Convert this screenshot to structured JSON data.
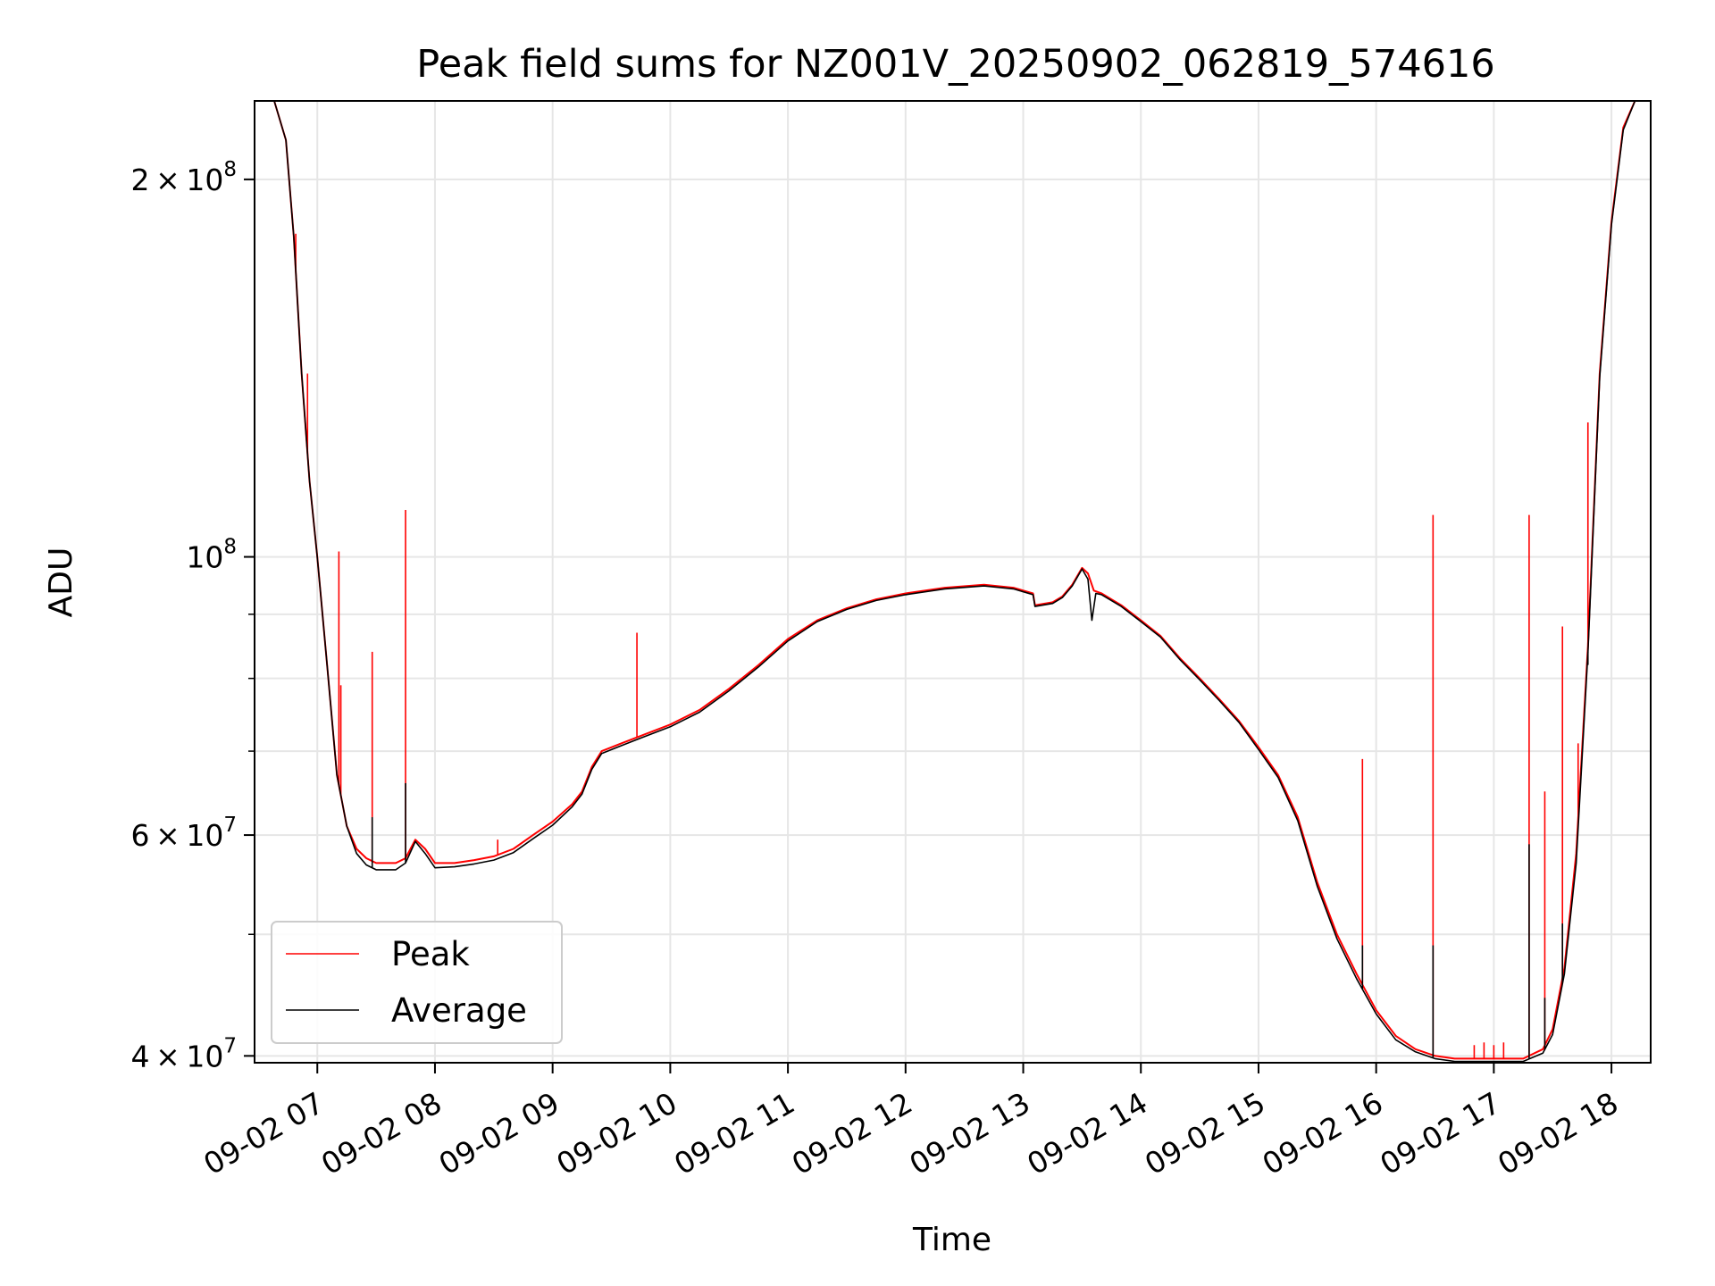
{
  "chart_data": {
    "type": "line",
    "title": "Peak field sums for NZ001V_20250902_062819_574616",
    "xlabel": "Time",
    "ylabel": "ADU",
    "x_scale": "time",
    "y_scale": "log",
    "xlim": [
      "2025-09-02 06:28",
      "2025-09-02 18:20"
    ],
    "ylim": [
      39500000,
      231000000
    ],
    "grid": true,
    "legend_position": "lower-left",
    "x_ticks": [
      {
        "value": "2025-09-02 07:00",
        "label": "09-02 07"
      },
      {
        "value": "2025-09-02 08:00",
        "label": "09-02 08"
      },
      {
        "value": "2025-09-02 09:00",
        "label": "09-02 09"
      },
      {
        "value": "2025-09-02 10:00",
        "label": "09-02 10"
      },
      {
        "value": "2025-09-02 11:00",
        "label": "09-02 11"
      },
      {
        "value": "2025-09-02 12:00",
        "label": "09-02 12"
      },
      {
        "value": "2025-09-02 13:00",
        "label": "09-02 13"
      },
      {
        "value": "2025-09-02 14:00",
        "label": "09-02 14"
      },
      {
        "value": "2025-09-02 15:00",
        "label": "09-02 15"
      },
      {
        "value": "2025-09-02 16:00",
        "label": "09-02 16"
      },
      {
        "value": "2025-09-02 17:00",
        "label": "09-02 17"
      },
      {
        "value": "2025-09-02 18:00",
        "label": "09-02 18"
      }
    ],
    "y_major_ticks": [
      {
        "value": 40000000,
        "mantissa": "4",
        "exponent": "7"
      },
      {
        "value": 60000000,
        "mantissa": "6",
        "exponent": "7"
      },
      {
        "value": 100000000,
        "mantissa": "10",
        "exponent": "8"
      },
      {
        "value": 200000000,
        "mantissa": "2",
        "exponent": "8"
      }
    ],
    "y_minor_ticks": [
      50000000,
      70000000,
      80000000,
      90000000
    ],
    "series": [
      {
        "name": "Peak",
        "color": "#ff0000",
        "baseline": [
          [
            "2025-09-02 06:28",
            231000000
          ],
          [
            "2025-09-02 06:38",
            231000000
          ],
          [
            "2025-09-02 06:44",
            215000000
          ],
          [
            "2025-09-02 06:48",
            180000000
          ],
          [
            "2025-09-02 06:52",
            140000000
          ],
          [
            "2025-09-02 06:56",
            115000000
          ],
          [
            "2025-09-02 07:00",
            100000000
          ],
          [
            "2025-09-02 07:05",
            82000000
          ],
          [
            "2025-09-02 07:10",
            67000000
          ],
          [
            "2025-09-02 07:15",
            61000000
          ],
          [
            "2025-09-02 07:20",
            58500000
          ],
          [
            "2025-09-02 07:25",
            57500000
          ],
          [
            "2025-09-02 07:30",
            57000000
          ],
          [
            "2025-09-02 07:40",
            57000000
          ],
          [
            "2025-09-02 07:45",
            57500000
          ],
          [
            "2025-09-02 07:50",
            59500000
          ],
          [
            "2025-09-02 07:55",
            58500000
          ],
          [
            "2025-09-02 08:00",
            57000000
          ],
          [
            "2025-09-02 08:10",
            57000000
          ],
          [
            "2025-09-02 08:20",
            57300000
          ],
          [
            "2025-09-02 08:30",
            57700000
          ],
          [
            "2025-09-02 08:40",
            58500000
          ],
          [
            "2025-09-02 08:50",
            60000000
          ],
          [
            "2025-09-02 09:00",
            61500000
          ],
          [
            "2025-09-02 09:10",
            63500000
          ],
          [
            "2025-09-02 09:15",
            65000000
          ],
          [
            "2025-09-02 09:20",
            68000000
          ],
          [
            "2025-09-02 09:25",
            70000000
          ],
          [
            "2025-09-02 09:35",
            71000000
          ],
          [
            "2025-09-02 09:45",
            72000000
          ],
          [
            "2025-09-02 10:00",
            73500000
          ],
          [
            "2025-09-02 10:15",
            75500000
          ],
          [
            "2025-09-02 10:30",
            78500000
          ],
          [
            "2025-09-02 10:45",
            82000000
          ],
          [
            "2025-09-02 11:00",
            86000000
          ],
          [
            "2025-09-02 11:15",
            89000000
          ],
          [
            "2025-09-02 11:30",
            91000000
          ],
          [
            "2025-09-02 11:45",
            92500000
          ],
          [
            "2025-09-02 12:00",
            93500000
          ],
          [
            "2025-09-02 12:20",
            94500000
          ],
          [
            "2025-09-02 12:40",
            95000000
          ],
          [
            "2025-09-02 12:55",
            94500000
          ],
          [
            "2025-09-02 13:05",
            93500000
          ],
          [
            "2025-09-02 13:06",
            91500000
          ],
          [
            "2025-09-02 13:15",
            92000000
          ],
          [
            "2025-09-02 13:20",
            93000000
          ],
          [
            "2025-09-02 13:25",
            95000000
          ],
          [
            "2025-09-02 13:30",
            98000000
          ],
          [
            "2025-09-02 13:33",
            97000000
          ],
          [
            "2025-09-02 13:36",
            94000000
          ],
          [
            "2025-09-02 13:40",
            93500000
          ],
          [
            "2025-09-02 13:50",
            91500000
          ],
          [
            "2025-09-02 14:00",
            89000000
          ],
          [
            "2025-09-02 14:10",
            86500000
          ],
          [
            "2025-09-02 14:20",
            83000000
          ],
          [
            "2025-09-02 14:30",
            80000000
          ],
          [
            "2025-09-02 14:40",
            77000000
          ],
          [
            "2025-09-02 14:50",
            74000000
          ],
          [
            "2025-09-02 15:00",
            70500000
          ],
          [
            "2025-09-02 15:10",
            67000000
          ],
          [
            "2025-09-02 15:20",
            62000000
          ],
          [
            "2025-09-02 15:30",
            55000000
          ],
          [
            "2025-09-02 15:40",
            50000000
          ],
          [
            "2025-09-02 15:50",
            46500000
          ],
          [
            "2025-09-02 16:00",
            43500000
          ],
          [
            "2025-09-02 16:10",
            41500000
          ],
          [
            "2025-09-02 16:20",
            40500000
          ],
          [
            "2025-09-02 16:30",
            40000000
          ],
          [
            "2025-09-02 16:40",
            39800000
          ],
          [
            "2025-09-02 17:00",
            39800000
          ],
          [
            "2025-09-02 17:15",
            39800000
          ],
          [
            "2025-09-02 17:25",
            40500000
          ],
          [
            "2025-09-02 17:30",
            42000000
          ],
          [
            "2025-09-02 17:36",
            47000000
          ],
          [
            "2025-09-02 17:42",
            58000000
          ],
          [
            "2025-09-02 17:48",
            85000000
          ],
          [
            "2025-09-02 17:54",
            140000000
          ],
          [
            "2025-09-02 18:00",
            185000000
          ],
          [
            "2025-09-02 18:06",
            220000000
          ],
          [
            "2025-09-02 18:12",
            231000000
          ],
          [
            "2025-09-02 18:20",
            231000000
          ]
        ],
        "spikes": [
          [
            "2025-09-02 06:49",
            181000000
          ],
          [
            "2025-09-02 06:55",
            140000000
          ],
          [
            "2025-09-02 07:11",
            101000000
          ],
          [
            "2025-09-02 07:12",
            79000000
          ],
          [
            "2025-09-02 07:28",
            84000000
          ],
          [
            "2025-09-02 07:45",
            109000000
          ],
          [
            "2025-09-02 08:32",
            59500000
          ],
          [
            "2025-09-02 09:43",
            87000000
          ],
          [
            "2025-09-02 15:53",
            69000000
          ],
          [
            "2025-09-02 16:29",
            108000000
          ],
          [
            "2025-09-02 17:18",
            108000000
          ],
          [
            "2025-09-02 17:26",
            65000000
          ],
          [
            "2025-09-02 17:35",
            88000000
          ],
          [
            "2025-09-02 17:43",
            71000000
          ],
          [
            "2025-09-02 17:48",
            128000000
          ],
          [
            "2025-09-02 16:50",
            40800000
          ],
          [
            "2025-09-02 16:55",
            41000000
          ],
          [
            "2025-09-02 17:00",
            40800000
          ],
          [
            "2025-09-02 17:05",
            41000000
          ]
        ]
      },
      {
        "name": "Average",
        "color": "#000000",
        "baseline": [
          [
            "2025-09-02 06:28",
            231000000
          ],
          [
            "2025-09-02 06:38",
            231000000
          ],
          [
            "2025-09-02 06:44",
            215000000
          ],
          [
            "2025-09-02 06:48",
            180000000
          ],
          [
            "2025-09-02 06:52",
            140000000
          ],
          [
            "2025-09-02 06:56",
            115000000
          ],
          [
            "2025-09-02 07:00",
            100000000
          ],
          [
            "2025-09-02 07:05",
            82000000
          ],
          [
            "2025-09-02 07:10",
            67000000
          ],
          [
            "2025-09-02 07:15",
            61000000
          ],
          [
            "2025-09-02 07:20",
            58000000
          ],
          [
            "2025-09-02 07:25",
            56800000
          ],
          [
            "2025-09-02 07:30",
            56300000
          ],
          [
            "2025-09-02 07:40",
            56300000
          ],
          [
            "2025-09-02 07:45",
            57000000
          ],
          [
            "2025-09-02 07:50",
            59300000
          ],
          [
            "2025-09-02 07:55",
            58000000
          ],
          [
            "2025-09-02 08:00",
            56500000
          ],
          [
            "2025-09-02 08:10",
            56600000
          ],
          [
            "2025-09-02 08:20",
            56900000
          ],
          [
            "2025-09-02 08:30",
            57300000
          ],
          [
            "2025-09-02 08:40",
            58100000
          ],
          [
            "2025-09-02 08:50",
            59600000
          ],
          [
            "2025-09-02 09:00",
            61100000
          ],
          [
            "2025-09-02 09:10",
            63200000
          ],
          [
            "2025-09-02 09:15",
            64700000
          ],
          [
            "2025-09-02 09:20",
            67700000
          ],
          [
            "2025-09-02 09:25",
            69700000
          ],
          [
            "2025-09-02 09:35",
            70700000
          ],
          [
            "2025-09-02 09:45",
            71700000
          ],
          [
            "2025-09-02 10:00",
            73200000
          ],
          [
            "2025-09-02 10:15",
            75200000
          ],
          [
            "2025-09-02 10:30",
            78200000
          ],
          [
            "2025-09-02 10:45",
            81700000
          ],
          [
            "2025-09-02 11:00",
            85700000
          ],
          [
            "2025-09-02 11:15",
            88800000
          ],
          [
            "2025-09-02 11:30",
            90800000
          ],
          [
            "2025-09-02 11:45",
            92300000
          ],
          [
            "2025-09-02 12:00",
            93300000
          ],
          [
            "2025-09-02 12:20",
            94300000
          ],
          [
            "2025-09-02 12:40",
            94800000
          ],
          [
            "2025-09-02 12:55",
            94300000
          ],
          [
            "2025-09-02 13:05",
            93300000
          ],
          [
            "2025-09-02 13:06",
            91300000
          ],
          [
            "2025-09-02 13:15",
            91800000
          ],
          [
            "2025-09-02 13:20",
            92800000
          ],
          [
            "2025-09-02 13:25",
            94800000
          ],
          [
            "2025-09-02 13:30",
            97800000
          ],
          [
            "2025-09-02 13:33",
            96000000
          ],
          [
            "2025-09-02 13:35",
            89000000
          ],
          [
            "2025-09-02 13:37",
            93500000
          ],
          [
            "2025-09-02 13:40",
            93300000
          ],
          [
            "2025-09-02 13:50",
            91300000
          ],
          [
            "2025-09-02 14:00",
            88800000
          ],
          [
            "2025-09-02 14:10",
            86300000
          ],
          [
            "2025-09-02 14:20",
            82800000
          ],
          [
            "2025-09-02 14:30",
            79800000
          ],
          [
            "2025-09-02 14:40",
            76800000
          ],
          [
            "2025-09-02 14:50",
            73800000
          ],
          [
            "2025-09-02 15:00",
            70200000
          ],
          [
            "2025-09-02 15:10",
            66700000
          ],
          [
            "2025-09-02 15:20",
            61600000
          ],
          [
            "2025-09-02 15:30",
            54600000
          ],
          [
            "2025-09-02 15:40",
            49600000
          ],
          [
            "2025-09-02 15:50",
            46100000
          ],
          [
            "2025-09-02 16:00",
            43200000
          ],
          [
            "2025-09-02 16:10",
            41200000
          ],
          [
            "2025-09-02 16:20",
            40300000
          ],
          [
            "2025-09-02 16:30",
            39800000
          ],
          [
            "2025-09-02 16:40",
            39600000
          ],
          [
            "2025-09-02 17:00",
            39600000
          ],
          [
            "2025-09-02 17:15",
            39600000
          ],
          [
            "2025-09-02 17:25",
            40200000
          ],
          [
            "2025-09-02 17:30",
            41600000
          ],
          [
            "2025-09-02 17:36",
            46500000
          ],
          [
            "2025-09-02 17:42",
            57000000
          ],
          [
            "2025-09-02 17:48",
            84000000
          ],
          [
            "2025-09-02 17:54",
            139000000
          ],
          [
            "2025-09-02 18:00",
            184000000
          ],
          [
            "2025-09-02 18:06",
            219000000
          ],
          [
            "2025-09-02 18:12",
            231000000
          ],
          [
            "2025-09-02 18:20",
            231000000
          ]
        ],
        "spikes": [
          [
            "2025-09-02 07:45",
            66000000
          ],
          [
            "2025-09-02 07:28",
            62000000
          ],
          [
            "2025-09-02 15:53",
            49000000
          ],
          [
            "2025-09-02 16:29",
            49000000
          ],
          [
            "2025-09-02 17:18",
            59000000
          ],
          [
            "2025-09-02 17:26",
            44500000
          ],
          [
            "2025-09-02 17:35",
            51000000
          ],
          [
            "2025-09-02 17:48",
            82000000
          ]
        ]
      }
    ]
  }
}
